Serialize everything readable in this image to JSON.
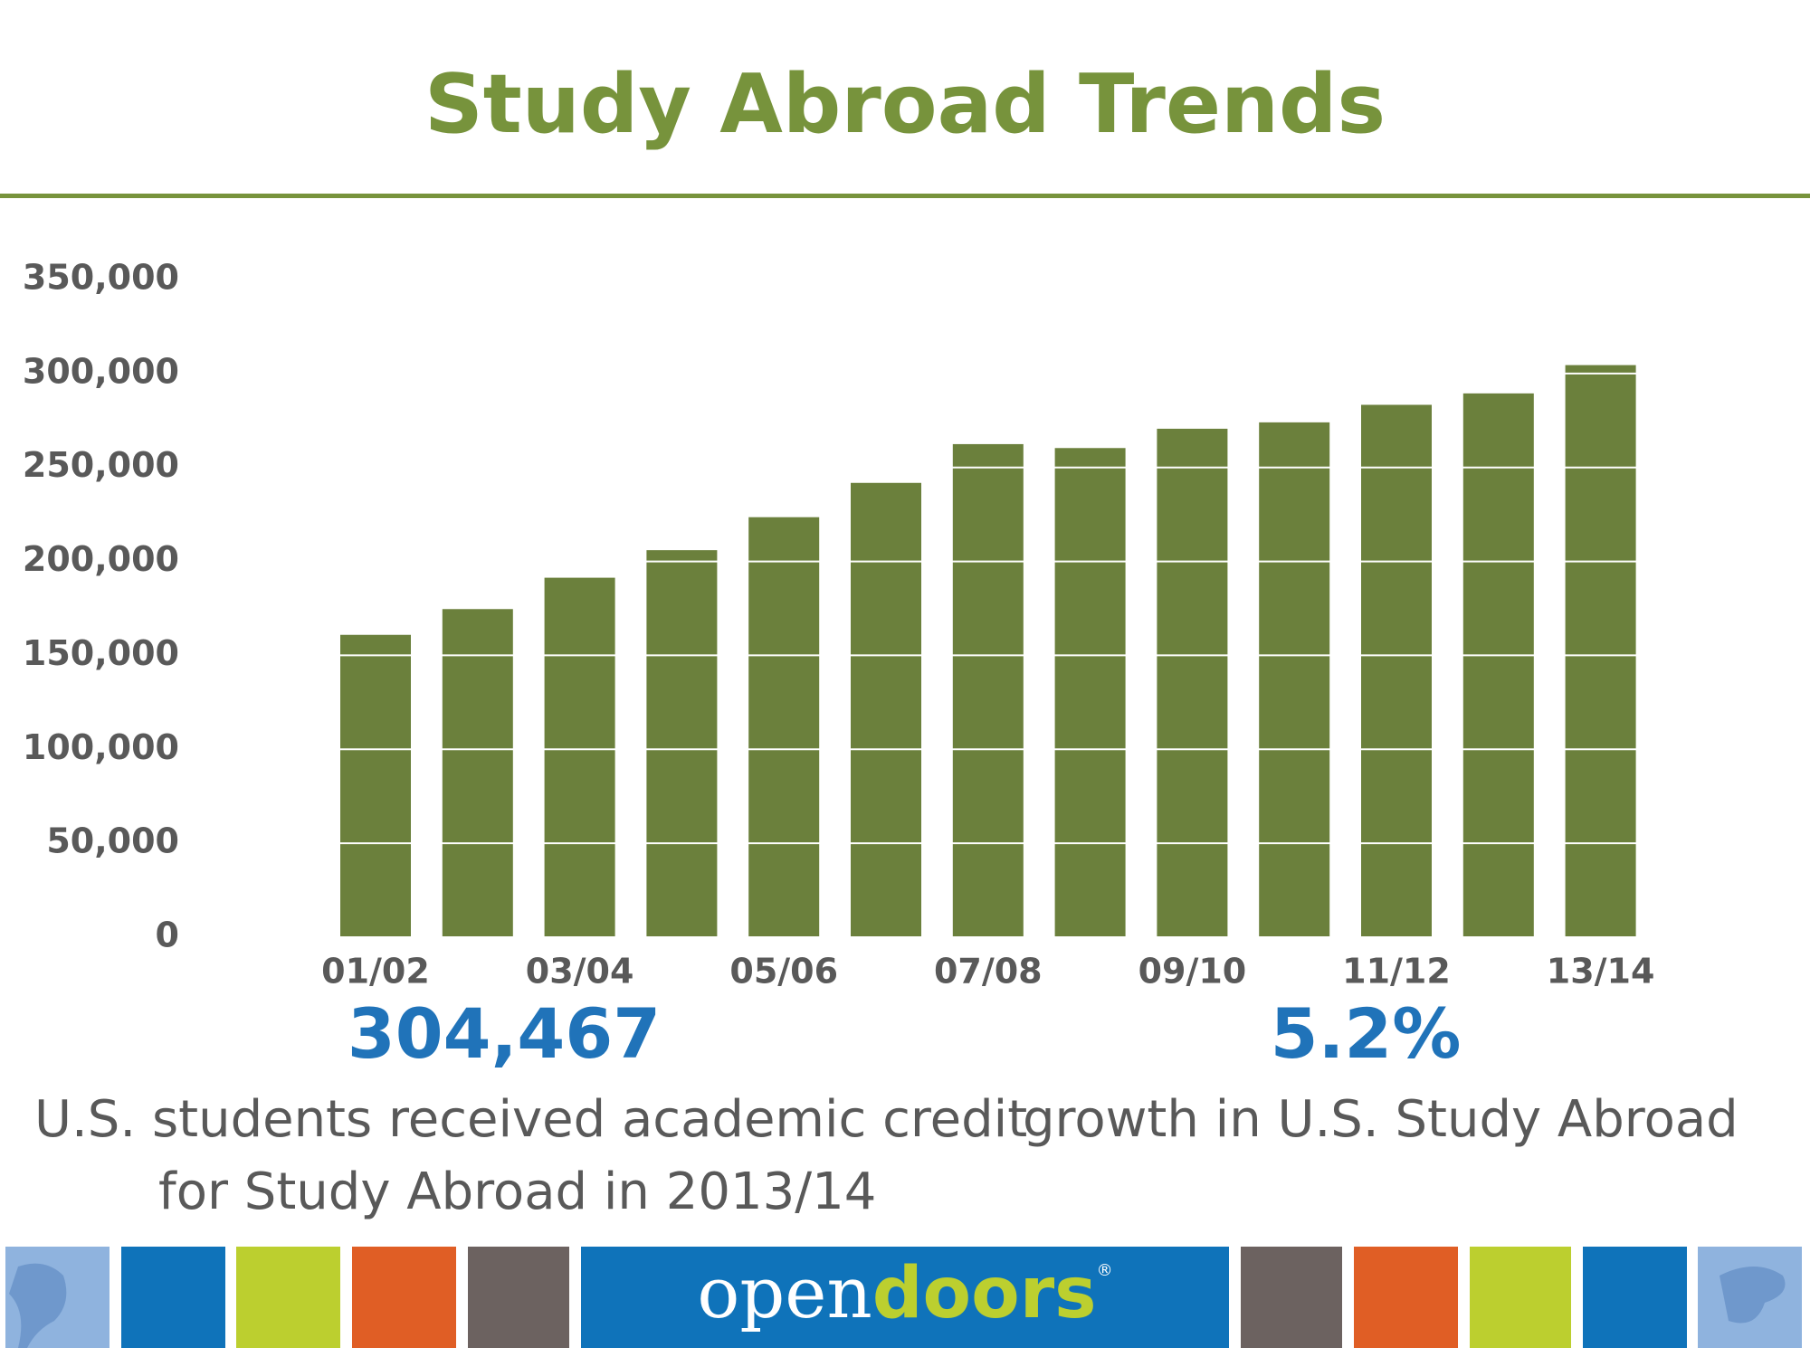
{
  "chart_data": {
    "type": "bar",
    "title": "Study Abroad Trends",
    "categories": [
      "01/02",
      null,
      "03/04",
      null,
      "05/06",
      null,
      "07/08",
      null,
      "09/10",
      null,
      "11/12",
      null,
      "13/14"
    ],
    "values": [
      160920,
      174629,
      191321,
      205983,
      223534,
      241791,
      262416,
      260327,
      270604,
      273996,
      283332,
      289408,
      304467
    ],
    "color": "#6b803c",
    "ylim": [
      0,
      350000
    ],
    "yticks": [
      0,
      {
        "value": 50000,
        "label": "50,000"
      },
      {
        "value": 100000,
        "label": "100,000"
      },
      {
        "value": 150000,
        "label": "150,000"
      },
      {
        "value": 200000,
        "label": "200,000"
      },
      {
        "value": 250000,
        "label": "250,000"
      },
      {
        "value": 300000,
        "label": "300,000"
      },
      {
        "value": 350000,
        "label": "350,000"
      }
    ],
    "grid": true,
    "grid_color": "#ffffff"
  },
  "stats": [
    {
      "value": "304,467",
      "description": [
        "U.S. students received academic credit",
        "for Study Abroad in 2013/14"
      ]
    },
    {
      "value": "5.2%",
      "description": [
        "growth in U.S. Study Abroad"
      ]
    }
  ],
  "footer": {
    "brand_open": "open",
    "brand_doors": "doors",
    "brand_mark": "®"
  }
}
